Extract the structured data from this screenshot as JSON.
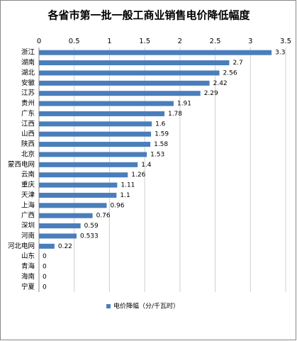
{
  "chart_data": {
    "type": "bar",
    "title": "各省市第一批一般工商业销售电价降低幅度",
    "categories": [
      "浙江",
      "湖南",
      "湖北",
      "安徽",
      "江苏",
      "贵州",
      "广东",
      "江西",
      "山西",
      "陕西",
      "北京",
      "蒙西电网",
      "云南",
      "重庆",
      "天津",
      "上海",
      "广西",
      "深圳",
      "河南",
      "河北电网",
      "山东",
      "青海",
      "海南",
      "宁夏"
    ],
    "series": [
      {
        "name": "电价降幅（分/千瓦时）",
        "color": "#4a7ebb",
        "values": [
          3.3,
          2.7,
          2.56,
          2.42,
          2.29,
          1.91,
          1.78,
          1.6,
          1.59,
          1.58,
          1.53,
          1.4,
          1.26,
          1.11,
          1.1,
          0.96,
          0.76,
          0.59,
          0.533,
          0.22,
          0,
          0,
          0,
          0
        ]
      }
    ],
    "xlim": [
      0,
      3.5
    ],
    "xticks": [
      0,
      0.5,
      1,
      1.5,
      2,
      2.5,
      3,
      3.5
    ],
    "grid": true,
    "legend": "bottom"
  }
}
